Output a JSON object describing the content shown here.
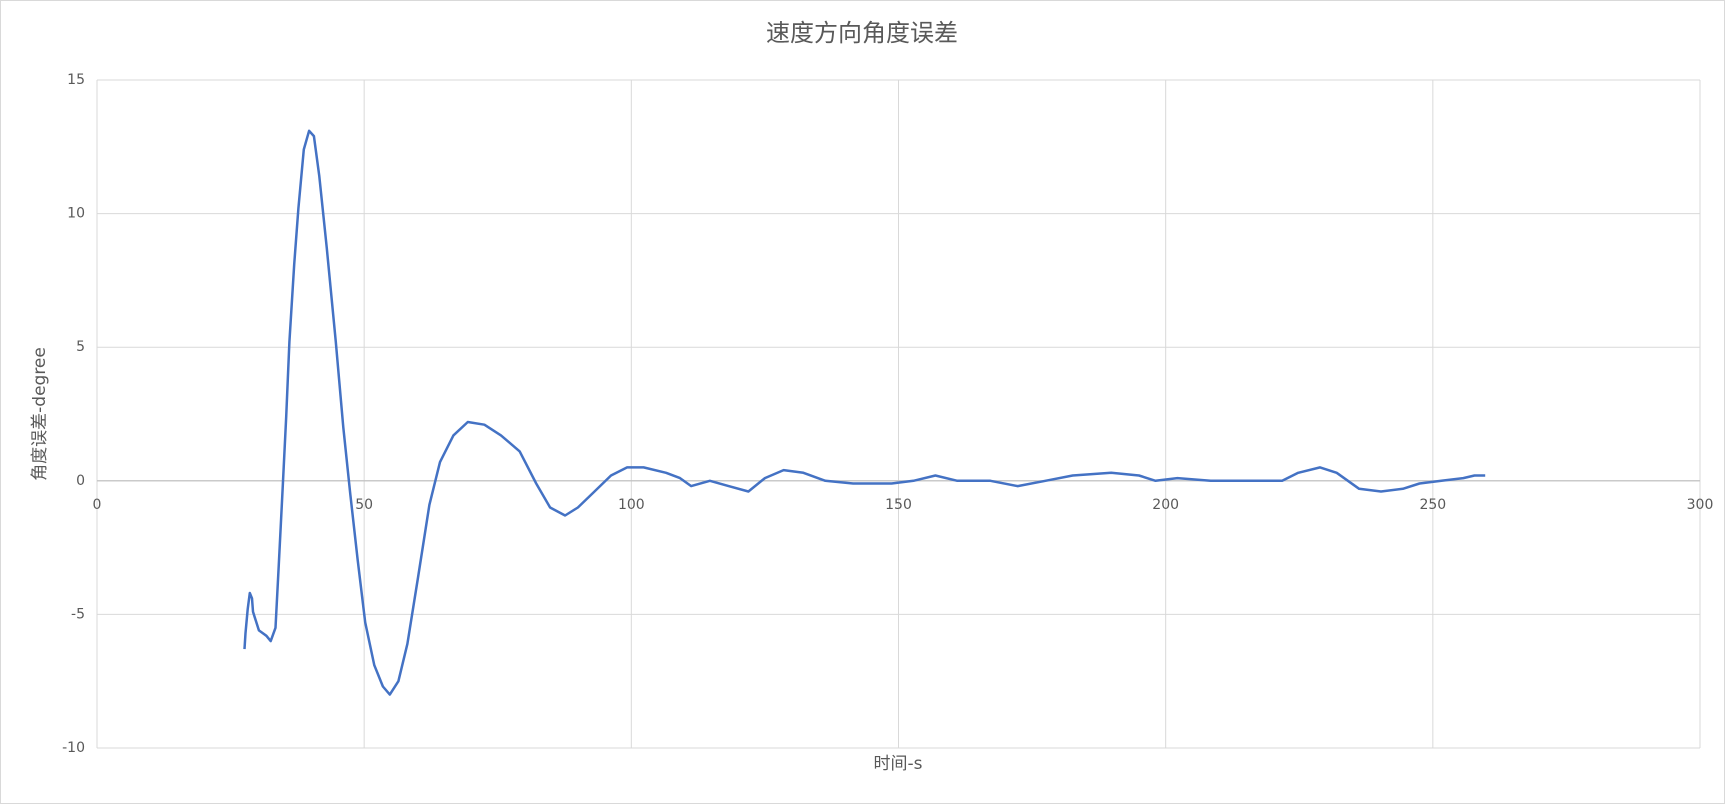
{
  "chart_data": {
    "type": "line",
    "title": "速度方向角度误差",
    "x_label": "时间-s",
    "y_label": "角度误差-degree",
    "color": "#4472c4",
    "grid": true,
    "xlim": [
      0,
      300
    ],
    "xticks": [
      0,
      50,
      100,
      150,
      200,
      250,
      300
    ],
    "ylim": [
      -10,
      15
    ],
    "yticks": [
      -10,
      -5,
      0,
      5,
      10,
      15
    ],
    "x": [
      27.6,
      27.8,
      28.2,
      28.6,
      29.0,
      29.2,
      30.3,
      31.7,
      32.5,
      33.4,
      34.0,
      34.8,
      35.4,
      36.0,
      36.9,
      37.7,
      38.7,
      39.7,
      40.6,
      41.6,
      43.0,
      44.7,
      46.1,
      47.4,
      48.8,
      50.2,
      51.9,
      53.5,
      54.8,
      56.4,
      58.1,
      60.1,
      62.2,
      64.2,
      66.7,
      69.4,
      72.5,
      75.6,
      79.1,
      82.2,
      84.8,
      87.6,
      90.0,
      93.1,
      96.2,
      99.2,
      102.3,
      106.5,
      109.1,
      111.2,
      114.7,
      118.2,
      121.9,
      125.0,
      128.5,
      132.2,
      136.3,
      141.5,
      148.7,
      152.8,
      156.9,
      161.0,
      167.2,
      172.3,
      177.5,
      182.6,
      189.8,
      195.0,
      198.1,
      202.2,
      208.4,
      214.5,
      221.8,
      224.8,
      228.9,
      232.0,
      236.2,
      240.3,
      244.4,
      247.5,
      251.6,
      255.7,
      257.8,
      259.8
    ],
    "values": [
      -6.3,
      -5.7,
      -4.8,
      -4.2,
      -4.4,
      -4.9,
      -5.6,
      -5.8,
      -6.0,
      -5.5,
      -3.2,
      -0.1,
      2.4,
      5.2,
      8.1,
      10.2,
      12.4,
      13.1,
      12.9,
      11.4,
      8.7,
      5.2,
      2.0,
      -0.5,
      -3.0,
      -5.3,
      -6.9,
      -7.7,
      -8.0,
      -7.5,
      -6.1,
      -3.6,
      -0.9,
      0.7,
      1.7,
      2.2,
      2.1,
      1.7,
      1.1,
      -0.1,
      -1.0,
      -1.3,
      -1.0,
      -0.4,
      0.2,
      0.5,
      0.5,
      0.3,
      0.1,
      -0.2,
      0.0,
      -0.2,
      -0.4,
      0.1,
      0.4,
      0.3,
      0.0,
      -0.1,
      -0.1,
      0.0,
      0.2,
      0.0,
      0.0,
      -0.2,
      0.0,
      0.2,
      0.3,
      0.2,
      0.0,
      0.1,
      0.0,
      0.0,
      0.0,
      0.3,
      0.5,
      0.3,
      -0.3,
      -0.4,
      -0.3,
      -0.1,
      0.0,
      0.1,
      0.2,
      0.2
    ]
  }
}
